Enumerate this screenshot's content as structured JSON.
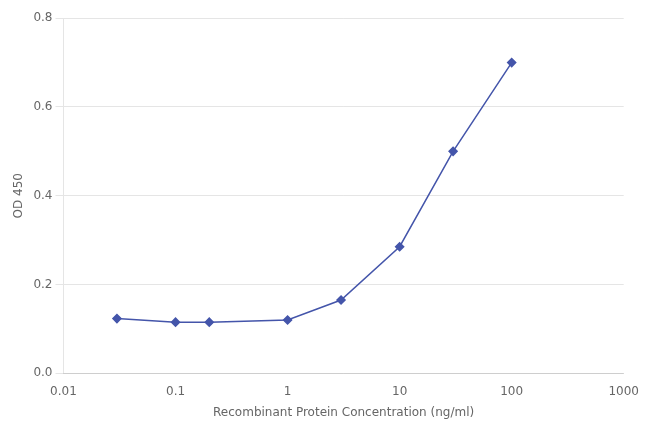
{
  "chart_data": {
    "type": "line",
    "x": [
      0.03,
      0.1,
      0.2,
      1.0,
      3.0,
      10.0,
      30.0,
      100.0
    ],
    "values": [
      0.123,
      0.115,
      0.115,
      0.12,
      0.165,
      0.285,
      0.5,
      0.7
    ],
    "color": "#4455aa",
    "marker": "diamond",
    "xlabel": "Recombinant Protein Concentration (ng/ml)",
    "ylabel": "OD 450",
    "log": "x",
    "xlim": [
      0.01,
      1000
    ],
    "ylim": [
      0.0,
      0.8
    ],
    "xticks": [
      0.01,
      0.1,
      1,
      10,
      100,
      1000
    ],
    "yticks": [
      {
        "value": 0.0,
        "label": "0.0"
      },
      0.2,
      0.4,
      0.6,
      0.8
    ],
    "grid": "y"
  }
}
